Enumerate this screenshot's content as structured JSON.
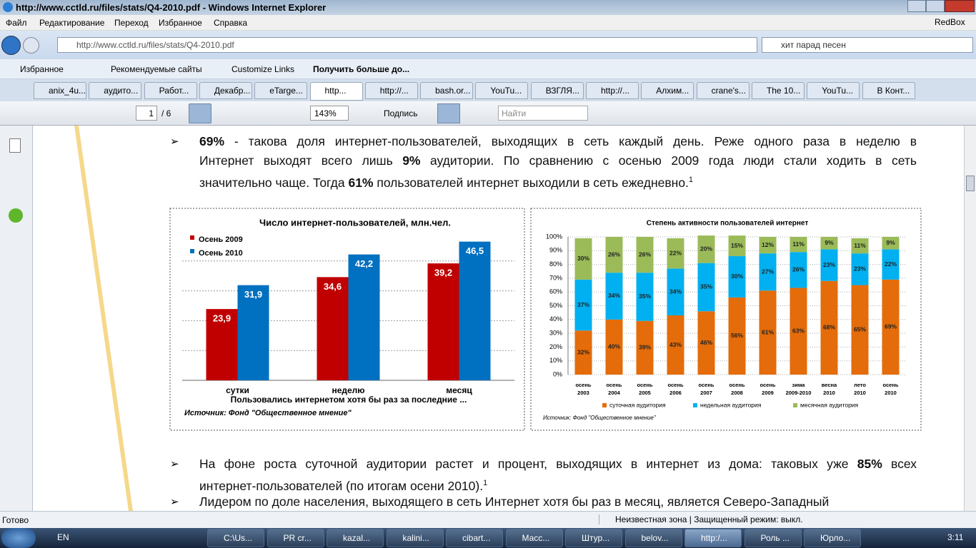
{
  "window": {
    "title": "http://www.cctld.ru/files/stats/Q4-2010.pdf - Windows Internet Explorer",
    "menu": [
      "Файл",
      "Редактирование",
      "Переход",
      "Избранное",
      "Справка"
    ],
    "right_label": "RedBox"
  },
  "address": {
    "url": "http://www.cctld.ru/files/stats/Q4-2010.pdf",
    "search": "хит парад песен"
  },
  "favorites": {
    "label": "Избранное",
    "items": [
      "Рекомендуемые сайты",
      "Customize Links",
      "Получить больше до..."
    ]
  },
  "tabs": [
    "anix_4u...",
    "аудито...",
    "Работ...",
    "Декабр...",
    "eTarge...",
    "http...",
    "http://...",
    "bash.or...",
    "YouTu...",
    "ВЗГЛЯ...",
    "http://...",
    "Алхим...",
    "crane's...",
    "The 10...",
    "YouTu...",
    "В Конт..."
  ],
  "active_tab": 5,
  "pdf_toolbar": {
    "page": "1",
    "pages": "/ 6",
    "zoom": "143%",
    "sign": "Подпись",
    "find": "Найти"
  },
  "document": {
    "paragraphs": [
      {
        "top": false,
        "lines": [
          [
            {
              "t": "69%",
              "b": true
            },
            {
              "t": " - такова доля интернет-пользователей, выходящих в сеть каждый день. Реже одного раза в неделю в",
              "b": false
            }
          ],
          [
            {
              "t": "Интернет выходят всего лишь ",
              "b": false
            },
            {
              "t": "9%",
              "b": true
            },
            {
              "t": " аудитории. По сравнению с осенью 2009 года люди стали ходить в сеть",
              "b": false
            }
          ],
          [
            {
              "t": "значительно чаще. Тогда ",
              "b": false
            },
            {
              "t": "61%",
              "b": true
            },
            {
              "t": " пользователей интернет выходили в сеть ежедневно.",
              "b": false
            },
            {
              "t": "1",
              "sup": true
            }
          ]
        ]
      },
      {
        "top": true,
        "lines": [
          [
            {
              "t": "На фоне роста суточной аудитории растет и процент, выходящих в интернет из дома: таковых уже ",
              "b": false
            },
            {
              "t": "85%",
              "b": true
            },
            {
              "t": " всех",
              "b": false
            }
          ],
          [
            {
              "t": "интернет-пользователей (по итогам осени 2010).",
              "b": false
            },
            {
              "t": "1",
              "sup": true
            }
          ]
        ]
      },
      {
        "top": true,
        "lines": [
          [
            {
              "t": "Лидером по доле населения, выходящего в сеть Интернет хотя бы раз в месяц, является Северо-Западный",
              "b": false
            }
          ]
        ]
      }
    ]
  },
  "chart_data": [
    {
      "type": "bar",
      "title": "Число интернет-пользователей, млн.чел.",
      "categories": [
        "сутки",
        "неделю",
        "месяц"
      ],
      "series": [
        {
          "name": "Осень 2009",
          "color": "#c00000",
          "values": [
            23.9,
            34.6,
            39.2
          ],
          "value_labels": [
            "23,9",
            "34,6",
            "39,2"
          ]
        },
        {
          "name": "Осень 2010",
          "color": "#0070c0",
          "values": [
            31.9,
            42.2,
            46.5
          ],
          "value_labels": [
            "31,9",
            "42,2",
            "46,5"
          ]
        }
      ],
      "xlabel": "Пользовались интернетом хотя бы раз за последние ...",
      "source": "Источник: Фонд \"Общественное мнение\"",
      "ylim": [
        0,
        50
      ],
      "yticks": [
        10,
        20,
        30,
        40
      ],
      "grid": true
    },
    {
      "type": "stacked_bar",
      "title": "Степень активности пользователей интернет",
      "categories": [
        [
          "осень",
          "2003"
        ],
        [
          "осень",
          "2004"
        ],
        [
          "осень",
          "2005"
        ],
        [
          "осень",
          "2006"
        ],
        [
          "осень",
          "2007"
        ],
        [
          "осень",
          "2008"
        ],
        [
          "осень",
          "2009"
        ],
        [
          "зима",
          "2009-2010"
        ],
        [
          "весна",
          "2010"
        ],
        [
          "лето",
          "2010"
        ],
        [
          "осень",
          "2010"
        ]
      ],
      "series": [
        {
          "name": "суточная аудитория",
          "color": "#e46c0a",
          "values": [
            32,
            40,
            39,
            43,
            46,
            56,
            61,
            63,
            68,
            65,
            69
          ],
          "value_labels": [
            "32%",
            "40%",
            "39%",
            "43%",
            "46%",
            "56%",
            "61%",
            "63%",
            "68%",
            "65%",
            "69%"
          ]
        },
        {
          "name": "недельная аудитория",
          "color": "#00b0f0",
          "values": [
            37,
            34,
            35,
            34,
            35,
            30,
            27,
            26,
            23,
            23,
            22
          ],
          "value_labels": [
            "37%",
            "34%",
            "35%",
            "34%",
            "35%",
            "30%",
            "27%",
            "26%",
            "23%",
            "23%",
            "22%"
          ]
        },
        {
          "name": "месячная аудитория",
          "color": "#9bbb59",
          "values": [
            30,
            26,
            26,
            22,
            20,
            15,
            12,
            11,
            9,
            11,
            9
          ],
          "value_labels": [
            "30%",
            "26%",
            "26%",
            "22%",
            "20%",
            "15%",
            "12%",
            "11%",
            "9%",
            "11%",
            "9%"
          ]
        }
      ],
      "source": "Источник: Фонд \"Общественное мнение\"",
      "ylim": [
        0,
        100
      ],
      "yticks": [
        {
          "value": 0,
          "label": "0%"
        },
        {
          "value": 10,
          "label": "10%"
        },
        {
          "value": 20,
          "label": "20%"
        },
        {
          "value": 30,
          "label": "30%"
        },
        {
          "value": 40,
          "label": "40%"
        },
        {
          "value": 50,
          "label": "50%"
        },
        {
          "value": 60,
          "label": "60%"
        },
        {
          "value": 70,
          "label": "70%"
        },
        {
          "value": 80,
          "label": "80%"
        },
        {
          "value": 90,
          "label": "90%"
        },
        {
          "value": 100,
          "label": "100%"
        }
      ],
      "grid": true
    }
  ],
  "status": {
    "left": "Готово",
    "zone": "Неизвестная зона | Защищенный режим: выкл."
  },
  "taskbar": {
    "lang": "EN",
    "items": [
      "C:\\Us...",
      "PR cr...",
      "kazal...",
      "kalini...",
      "cibart...",
      "Масс...",
      "Штур...",
      "belov...",
      "http:/...",
      "Роль ...",
      "Юрло..."
    ],
    "active": 8,
    "clock": "3:11"
  }
}
